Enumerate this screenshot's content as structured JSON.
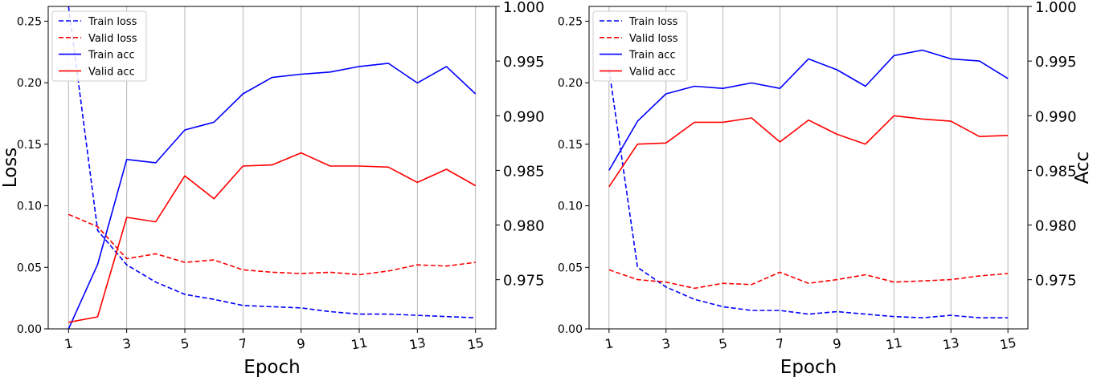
{
  "chart_data": [
    {
      "type": "line",
      "xlabel": "Epoch",
      "ylabel": "Loss",
      "y2label": "",
      "x": [
        1,
        2,
        3,
        4,
        5,
        6,
        7,
        8,
        9,
        10,
        11,
        12,
        13,
        14,
        15
      ],
      "xticks": [
        "1",
        "3",
        "5",
        "7",
        "9",
        "11",
        "13",
        "15"
      ],
      "ylim": [
        0,
        0.262
      ],
      "yticks": [
        "0.00",
        "0.05",
        "0.10",
        "0.15",
        "0.20",
        "0.25"
      ],
      "y2lim": [
        0.9705,
        1.0
      ],
      "y2ticks": [
        "0.975",
        "0.980",
        "0.985",
        "0.990",
        "0.995",
        "1.000"
      ],
      "grid": "vertical",
      "legend_position": "top-left",
      "series": [
        {
          "name": "Train loss",
          "axis": "left",
          "style": "dashed",
          "color": "#0000ff",
          "values": [
            0.262,
            0.08,
            0.052,
            0.038,
            0.028,
            0.024,
            0.019,
            0.018,
            0.017,
            0.014,
            0.012,
            0.012,
            0.011,
            0.01,
            0.009
          ]
        },
        {
          "name": "Valid loss",
          "axis": "left",
          "style": "dashed",
          "color": "#ff0000",
          "values": [
            0.093,
            0.083,
            0.057,
            0.061,
            0.054,
            0.056,
            0.048,
            0.046,
            0.045,
            0.046,
            0.044,
            0.047,
            0.052,
            0.051,
            0.054
          ]
        },
        {
          "name": "Train acc",
          "axis": "right",
          "style": "solid",
          "color": "#0000ff",
          "values": [
            0.9705,
            0.9764,
            0.986,
            0.9857,
            0.9887,
            0.9894,
            0.992,
            0.9935,
            0.9938,
            0.994,
            0.9945,
            0.9948,
            0.993,
            0.9945,
            0.992
          ]
        },
        {
          "name": "Valid acc",
          "axis": "right",
          "style": "solid",
          "color": "#ff0000",
          "values": [
            0.9711,
            0.9716,
            0.9807,
            0.9803,
            0.9845,
            0.9824,
            0.9854,
            0.9855,
            0.9866,
            0.9854,
            0.9854,
            0.9853,
            0.9839,
            0.9851,
            0.9836
          ]
        }
      ]
    },
    {
      "type": "line",
      "xlabel": "Epoch",
      "ylabel": "",
      "y2label": "Acc",
      "x": [
        1,
        2,
        3,
        4,
        5,
        6,
        7,
        8,
        9,
        10,
        11,
        12,
        13,
        14,
        15
      ],
      "xticks": [
        "1",
        "3",
        "5",
        "7",
        "9",
        "11",
        "13",
        "15"
      ],
      "ylim": [
        0,
        0.262
      ],
      "yticks": [
        "0.00",
        "0.05",
        "0.10",
        "0.15",
        "0.20",
        "0.25"
      ],
      "y2lim": [
        0.9705,
        1.0
      ],
      "y2ticks": [
        "0.975",
        "0.980",
        "0.985",
        "0.990",
        "0.995",
        "1.000"
      ],
      "grid": "vertical",
      "legend_position": "top-left",
      "series": [
        {
          "name": "Train loss",
          "axis": "left",
          "style": "dashed",
          "color": "#0000ff",
          "values": [
            0.211,
            0.05,
            0.034,
            0.024,
            0.018,
            0.015,
            0.015,
            0.012,
            0.014,
            0.012,
            0.01,
            0.009,
            0.011,
            0.009,
            0.009
          ]
        },
        {
          "name": "Valid loss",
          "axis": "left",
          "style": "dashed",
          "color": "#ff0000",
          "values": [
            0.048,
            0.04,
            0.038,
            0.033,
            0.037,
            0.036,
            0.046,
            0.037,
            0.04,
            0.044,
            0.038,
            0.039,
            0.04,
            0.043,
            0.045
          ]
        },
        {
          "name": "Train acc",
          "axis": "right",
          "style": "solid",
          "color": "#0000ff",
          "values": [
            0.985,
            0.9895,
            0.992,
            0.9927,
            0.9925,
            0.993,
            0.9925,
            0.9952,
            0.9942,
            0.9927,
            0.9955,
            0.996,
            0.9952,
            0.995,
            0.9934
          ]
        },
        {
          "name": "Valid acc",
          "axis": "right",
          "style": "solid",
          "color": "#ff0000",
          "values": [
            0.9835,
            0.9874,
            0.9875,
            0.9894,
            0.9894,
            0.9898,
            0.9876,
            0.9896,
            0.9883,
            0.9874,
            0.99,
            0.9897,
            0.9895,
            0.9881,
            0.9882
          ]
        }
      ]
    }
  ]
}
